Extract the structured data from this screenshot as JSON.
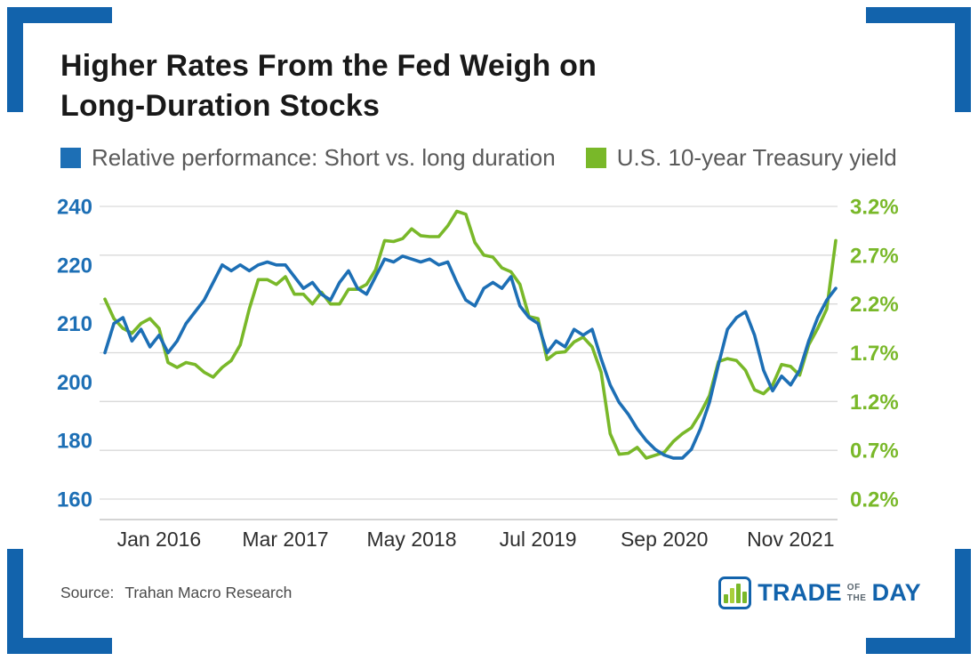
{
  "title": {
    "lines": [
      "Higher Rates From the Fed Weigh on",
      "Long-Duration Stocks"
    ]
  },
  "legend": {
    "items": [
      {
        "label": "Relative performance: Short vs. long duration",
        "color": "#1d6fb5"
      },
      {
        "label": "U.S. 10-year Treasury yield",
        "color": "#79b829"
      }
    ]
  },
  "source": {
    "label": "Source:",
    "value": "Trahan Macro Research"
  },
  "logo": {
    "icon": "bar-chart-icon",
    "word1": "TRADE",
    "word2_line1": "OF",
    "word2_line2": "THE",
    "word3": "DAY"
  },
  "colors": {
    "brand_blue": "#1263ac",
    "line_blue": "#1d6fb5",
    "line_green": "#79b829",
    "grid": "#d9d9d9",
    "axis_line": "#c6c6c6",
    "title_text": "#191919",
    "legend_text": "#5a5a5a",
    "x_label_text": "#2e2e2e",
    "source_text": "#4a4a4a",
    "background": "#ffffff"
  },
  "chart_data": {
    "type": "line",
    "title": "Higher Rates From the Fed Weigh on Long-Duration Stocks",
    "grid": true,
    "legend_position": "top",
    "x_range": {
      "start": "Jul 2015",
      "end": "Apr 2022",
      "frequency": "monthly"
    },
    "x_tick_labels": [
      "Jan 2016",
      "Mar 2017",
      "May 2018",
      "Jul 2019",
      "Sep 2020",
      "Nov 2021"
    ],
    "x_tick_indices": [
      6,
      20,
      34,
      48,
      62,
      76
    ],
    "left_axis": {
      "series": "Relative performance: Short vs. long duration",
      "tick_labels": [
        "240",
        "220",
        "210",
        "200",
        "180",
        "160"
      ],
      "tick_values": [
        240,
        220,
        210,
        200,
        180,
        160
      ],
      "scale": "custom-evenly-spaced-ticks",
      "color": "#1d6fb5"
    },
    "right_axis": {
      "series": "U.S. 10-year Treasury yield",
      "tick_labels": [
        "3.2%",
        "2.7%",
        "2.2%",
        "1.7%",
        "1.2%",
        "0.7%",
        "0.2%"
      ],
      "min": 0.2,
      "max": 3.2,
      "color": "#79b829"
    },
    "series": [
      {
        "name": "Relative performance: Short vs. long duration",
        "axis": "left",
        "color": "#1d6fb5",
        "values": [
          205,
          210,
          211,
          207,
          209,
          206,
          208,
          205,
          207,
          210,
          212,
          214,
          217,
          220,
          219,
          220,
          219,
          220,
          221,
          220,
          220,
          218,
          216,
          217,
          215,
          214,
          217,
          219,
          216,
          215,
          218,
          222,
          221,
          223,
          222,
          221,
          222,
          220,
          221,
          217,
          214,
          213,
          216,
          217,
          216,
          218,
          213,
          211,
          210,
          205,
          207,
          206,
          209,
          208,
          209,
          204,
          199,
          193,
          189,
          184,
          180,
          177,
          175,
          174,
          174,
          177,
          184,
          193,
          203,
          209,
          211,
          212,
          208,
          202,
          197,
          201,
          199,
          202,
          207,
          211,
          214,
          216
        ]
      },
      {
        "name": "U.S. 10-year Treasury yield",
        "axis": "right",
        "color": "#79b829",
        "values": [
          2.25,
          2.05,
          1.95,
          1.9,
          2.0,
          2.05,
          1.95,
          1.6,
          1.55,
          1.6,
          1.58,
          1.5,
          1.45,
          1.55,
          1.62,
          1.78,
          2.15,
          2.45,
          2.45,
          2.4,
          2.48,
          2.3,
          2.3,
          2.2,
          2.32,
          2.2,
          2.2,
          2.35,
          2.35,
          2.4,
          2.55,
          2.85,
          2.84,
          2.87,
          2.97,
          2.9,
          2.89,
          2.89,
          3.0,
          3.15,
          3.12,
          2.83,
          2.7,
          2.68,
          2.57,
          2.53,
          2.4,
          2.07,
          2.05,
          1.63,
          1.7,
          1.71,
          1.81,
          1.86,
          1.76,
          1.5,
          0.87,
          0.66,
          0.67,
          0.73,
          0.62,
          0.65,
          0.68,
          0.79,
          0.87,
          0.93,
          1.08,
          1.26,
          1.61,
          1.64,
          1.62,
          1.52,
          1.32,
          1.28,
          1.37,
          1.58,
          1.56,
          1.47,
          1.78,
          1.95,
          2.15,
          2.85
        ]
      }
    ]
  }
}
